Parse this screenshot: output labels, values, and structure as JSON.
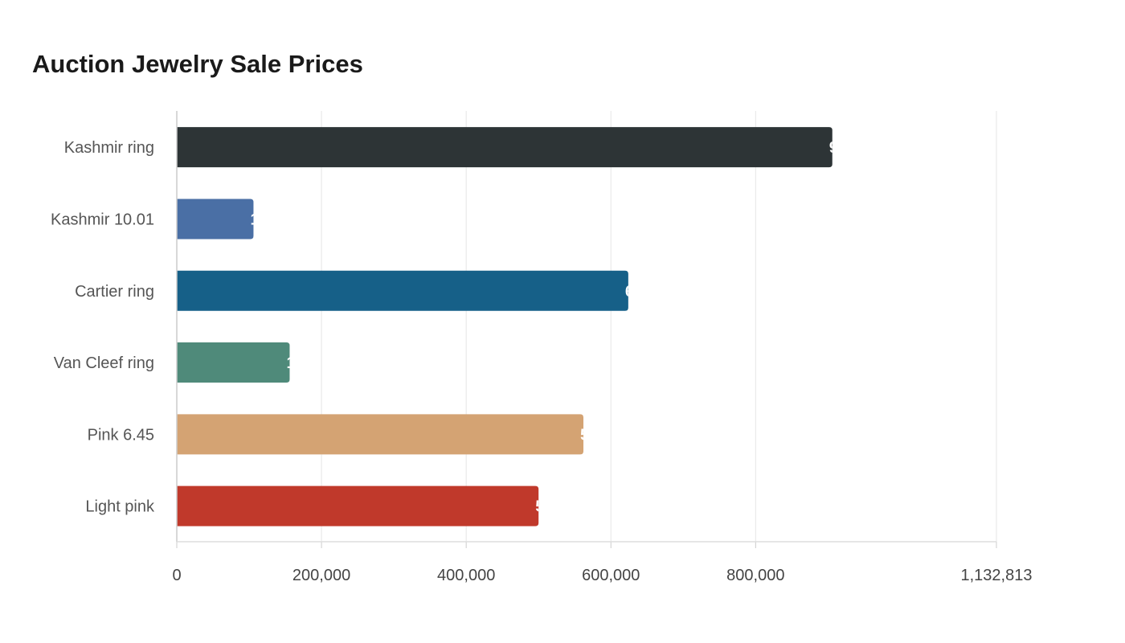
{
  "chart_data": {
    "type": "bar",
    "orientation": "horizontal",
    "title": "Auction Jewelry Sale Prices",
    "xlabel": "",
    "ylabel": "",
    "categories": [
      "Kashmir ring",
      "Kashmir 10.01",
      "Cartier ring",
      "Van Cleef ring",
      "Pink 6.45",
      "Light pink"
    ],
    "values": [
      906000,
      106000,
      624000,
      156000,
      562000,
      500000
    ],
    "colors": [
      "#2d3436",
      "#4a6fa5",
      "#166088",
      "#4f8a7a",
      "#d4a373",
      "#c0392b"
    ],
    "xlim": [
      0,
      1132813
    ],
    "xticks": [
      0,
      200000,
      400000,
      600000,
      800000,
      1132813
    ],
    "xtick_labels": [
      "0",
      "200,000",
      "400,000",
      "600,000",
      "800,000",
      "1,132,813"
    ],
    "grid": "vertical",
    "legend": "none"
  }
}
